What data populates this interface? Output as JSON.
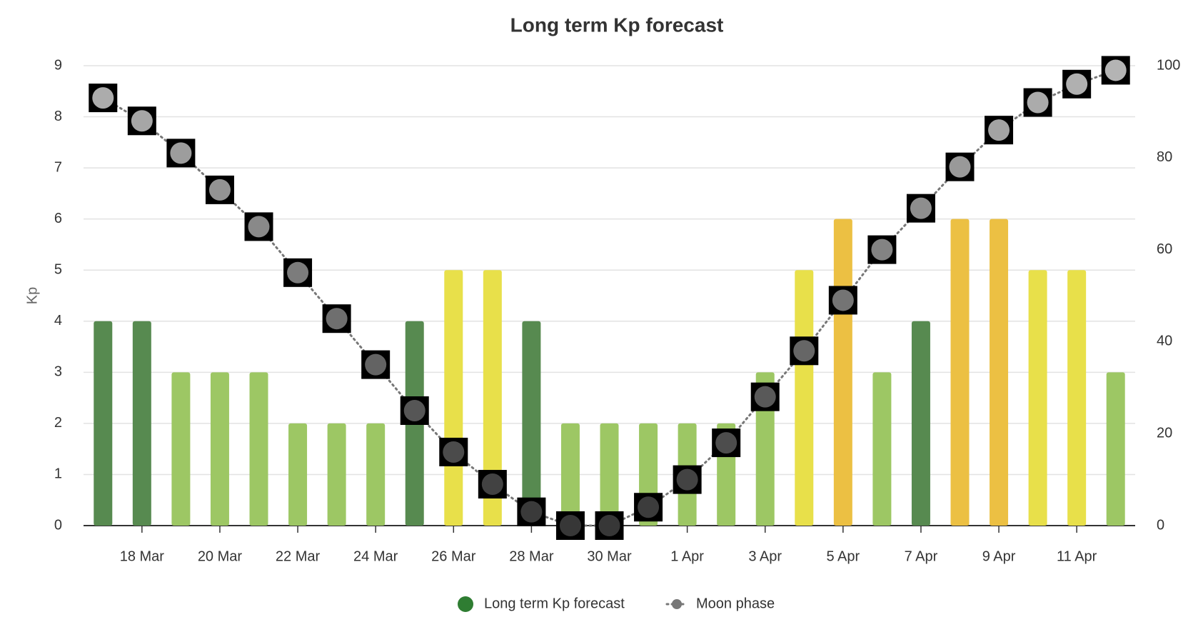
{
  "chart_data": {
    "type": "bar",
    "title": "Long term Kp forecast",
    "ylabel": "Kp",
    "categories": [
      null,
      "18 Mar",
      null,
      "20 Mar",
      null,
      "22 Mar",
      null,
      "24 Mar",
      null,
      "26 Mar",
      null,
      "28 Mar",
      null,
      "30 Mar",
      null,
      "1 Apr",
      null,
      "3 Apr",
      null,
      "5 Apr",
      null,
      "7 Apr",
      null,
      "9 Apr",
      null,
      "11 Apr",
      null
    ],
    "series": [
      {
        "name": "Long term Kp forecast",
        "color": "#2f7d32",
        "values": [
          4,
          4,
          3,
          3,
          3,
          2,
          2,
          2,
          4,
          5,
          5,
          4,
          2,
          2,
          2,
          2,
          2,
          3,
          5,
          6,
          3,
          4,
          6,
          6,
          5,
          5,
          3
        ],
        "colors": [
          "#578a50",
          "#578a50",
          "#9dc764",
          "#9dc764",
          "#9dc764",
          "#9dc764",
          "#9dc764",
          "#9dc764",
          "#578a50",
          "#e8e04a",
          "#e8e04a",
          "#578a50",
          "#9dc764",
          "#9dc764",
          "#9dc764",
          "#9dc764",
          "#9dc764",
          "#9dc764",
          "#e8e04a",
          "#ecc043",
          "#9dc764",
          "#578a50",
          "#ecc043",
          "#ecc043",
          "#e8e04a",
          "#e8e04a",
          "#9dc764"
        ]
      },
      {
        "name": "Moon phase",
        "type": "line",
        "axis": "y2",
        "color": "#777777",
        "values": [
          93,
          88,
          81,
          73,
          65,
          55,
          45,
          35,
          25,
          16,
          9,
          3,
          0,
          0,
          4,
          10,
          18,
          28,
          38,
          49,
          60,
          69,
          78,
          86,
          92,
          96,
          99
        ]
      }
    ],
    "ylim": [
      0,
      9
    ],
    "yticks": [
      0,
      1,
      2,
      3,
      4,
      5,
      6,
      7,
      8,
      9
    ],
    "y2lim": [
      0,
      100
    ],
    "y2ticks": [
      0,
      20,
      40,
      60,
      80,
      100
    ],
    "grid": true
  }
}
